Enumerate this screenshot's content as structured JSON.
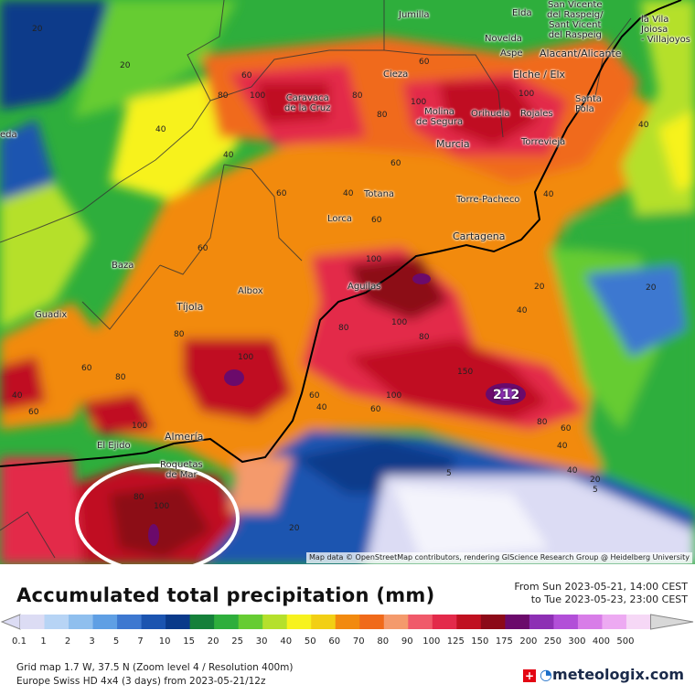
{
  "map": {
    "attribution": "Map data © OpenStreetMap contributors, rendering GIScience Research Group @ Heidelberg University",
    "max_value": "212",
    "cities": [
      {
        "name": "Jumilla",
        "label": "Jumilla"
      },
      {
        "name": "Elda",
        "label": "Elda"
      },
      {
        "name": "San Vicente",
        "label": "San Vicente\ndel Raspeig/\nSant Vicent\ndel Raspeig"
      },
      {
        "name": "Villa Joiosa",
        "label": "la Vila\nJoiosa\n- Villajoyos"
      },
      {
        "name": "Novelda",
        "label": "Novelda"
      },
      {
        "name": "Aspe",
        "label": "Aspe"
      },
      {
        "name": "Alicante",
        "label": "Alacant/Alicante"
      },
      {
        "name": "Elche",
        "label": "Elche / Elx"
      },
      {
        "name": "Santa Pola",
        "label": "Santa\nPola"
      },
      {
        "name": "Cieza",
        "label": "Cieza"
      },
      {
        "name": "Caravaca",
        "label": "Caravaca\nde la Cruz"
      },
      {
        "name": "Molina",
        "label": "Molina\nde Segura"
      },
      {
        "name": "Orihuela",
        "label": "Orihuela"
      },
      {
        "name": "Rojales",
        "label": "Rojales"
      },
      {
        "name": "Murcia",
        "label": "Murcia"
      },
      {
        "name": "Torrevieja",
        "label": "Torrevieja"
      },
      {
        "name": "Totana",
        "label": "Totana"
      },
      {
        "name": "Torre-Pacheco",
        "label": "Torre-Pacheco"
      },
      {
        "name": "Lorca",
        "label": "Lorca"
      },
      {
        "name": "Cartagena",
        "label": "Cartagena"
      },
      {
        "name": "Baza",
        "label": "Baza"
      },
      {
        "name": "Albox",
        "label": "Albox"
      },
      {
        "name": "Aguilas",
        "label": "Aguilas"
      },
      {
        "name": "Guadix",
        "label": "Guadix"
      },
      {
        "name": "Tijola",
        "label": "Tíjola"
      },
      {
        "name": "Almeria",
        "label": "Almería"
      },
      {
        "name": "El Ejido",
        "label": "El Ejido"
      },
      {
        "name": "Roquetas",
        "label": "Roquetas\nde Mar"
      },
      {
        "name": "eda",
        "label": "eda"
      }
    ],
    "isolines": [
      "20",
      "40",
      "60",
      "80",
      "100",
      "40",
      "60",
      "80",
      "100",
      "80",
      "100",
      "60",
      "40",
      "60",
      "40",
      "20",
      "100",
      "80",
      "60",
      "40",
      "60",
      "100",
      "80",
      "100",
      "60",
      "80",
      "100",
      "80",
      "60",
      "40",
      "20",
      "5",
      "5",
      "40",
      "20",
      "40",
      "60",
      "80",
      "100",
      "150",
      "100",
      "80",
      "60",
      "40",
      "20",
      "40",
      "60",
      "20"
    ]
  },
  "legend": {
    "title": "Accumulated total precipitation (mm)",
    "from": "From Sun 2023-05-21, 14:00 CEST",
    "to": "to Tue 2023-05-23, 23:00 CEST",
    "scale_labels": [
      "0.1",
      "1",
      "2",
      "3",
      "5",
      "7",
      "10",
      "15",
      "20",
      "25",
      "30",
      "40",
      "50",
      "60",
      "70",
      "80",
      "90",
      "100",
      "125",
      "150",
      "175",
      "200",
      "250",
      "300",
      "400",
      "500"
    ],
    "scale_colors": [
      "#dcdcf4",
      "#b7d4f5",
      "#8fbfee",
      "#5f9fe4",
      "#3d78d0",
      "#1b54b0",
      "#0a3a8a",
      "#15803a",
      "#2eae3c",
      "#66cc33",
      "#b5e02c",
      "#f7f21e",
      "#f2cf14",
      "#f28a0f",
      "#f06a1a",
      "#f49a6c",
      "#f05a6a",
      "#e32a4a",
      "#c01020",
      "#8c0a18",
      "#6b0a6b",
      "#8d2fb4",
      "#b24fd8",
      "#d87de8",
      "#edaaf2",
      "#f6d8f6",
      "#d8d8d8"
    ],
    "grid": "Grid map 1.7 W, 37.5 N (Zoom level 4 / Resolution 400m)",
    "model": "Europe Swiss HD 4x4 (3 days) from 2023-05-21/12z",
    "logo": "meteologix.com"
  }
}
